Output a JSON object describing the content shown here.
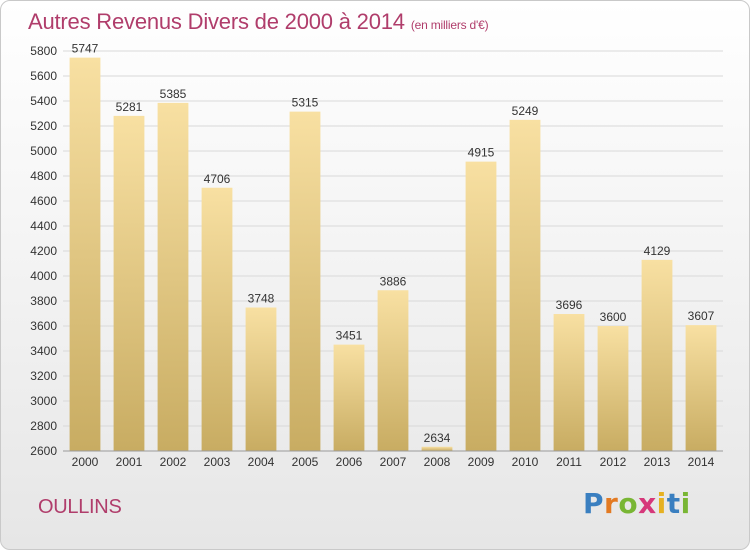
{
  "header": {
    "title": "Autres Revenus Divers de 2000 à 2014",
    "unit": "(en milliers d'€)"
  },
  "footer": {
    "city": "OULLINS",
    "logo": "Proxiti"
  },
  "colors": {
    "title": "#b03d6b",
    "bar_top": "#f8e0a2",
    "bar_bottom": "#c8ac62",
    "grid": "#d9d9d9"
  },
  "chart_data": {
    "type": "bar",
    "title": "Autres Revenus Divers de 2000 à 2014",
    "subtitle": "(en milliers d'€)",
    "categories": [
      "2000",
      "2001",
      "2002",
      "2003",
      "2004",
      "2005",
      "2006",
      "2007",
      "2008",
      "2009",
      "2010",
      "2011",
      "2012",
      "2013",
      "2014"
    ],
    "values": [
      5747,
      5281,
      5385,
      4706,
      3748,
      5315,
      3451,
      3886,
      2634,
      4915,
      5249,
      3696,
      3600,
      4129,
      3607
    ],
    "ylim": [
      2600,
      5800
    ],
    "yticks": [
      2600,
      2800,
      3000,
      3200,
      3400,
      3600,
      3800,
      4000,
      4200,
      4400,
      4600,
      4800,
      5000,
      5200,
      5400,
      5600,
      5800
    ],
    "grid": true,
    "xlabel": "",
    "ylabel": ""
  }
}
